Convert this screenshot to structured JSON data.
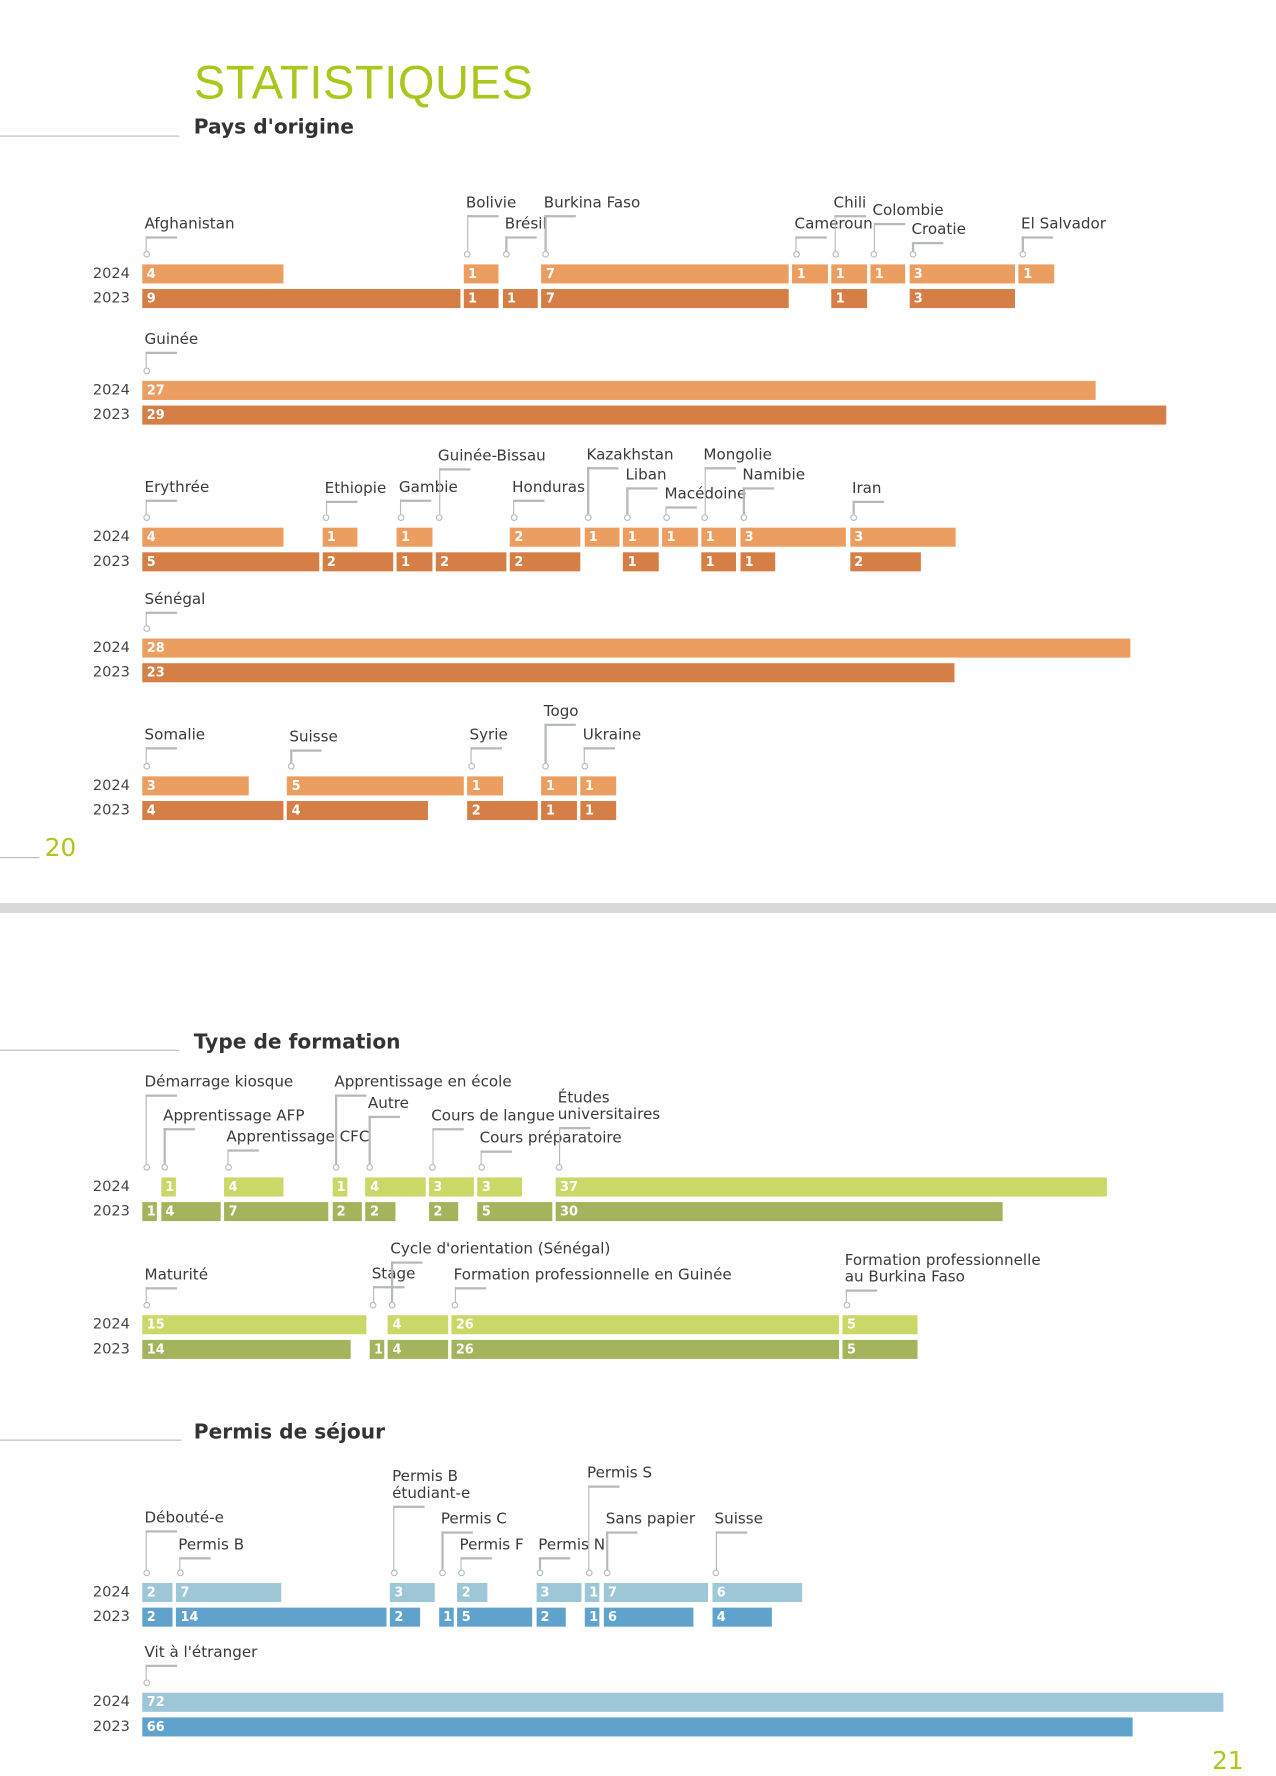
{
  "header": {
    "title": "STATISTIQUES"
  },
  "sections": {
    "pays": "Pays d'origine",
    "formation": "Type de formation",
    "permis": "Permis de séjour"
  },
  "page_numbers": {
    "left": "20",
    "right": "21"
  },
  "chart_data": [
    {
      "type": "bar",
      "orientation": "horizontal-stacked-segments",
      "title": "Pays d'origine",
      "colors": {
        "2024": "#eb9e5f",
        "2023": "#d57f46"
      },
      "groups": [
        {
          "categories": [
            "Afghanistan",
            "Bolivie",
            "Brésil",
            "Burkina Faso",
            "Cameroun",
            "Chili",
            "Colombie",
            "Croatie",
            "El Salvador"
          ],
          "series": [
            {
              "name": "2024",
              "values": [
                4,
                1,
                null,
                7,
                1,
                1,
                1,
                3,
                1
              ]
            },
            {
              "name": "2023",
              "values": [
                9,
                1,
                1,
                7,
                null,
                1,
                null,
                3,
                null
              ]
            }
          ]
        },
        {
          "categories": [
            "Guinée"
          ],
          "series": [
            {
              "name": "2024",
              "values": [
                27
              ]
            },
            {
              "name": "2023",
              "values": [
                29
              ]
            }
          ]
        },
        {
          "categories": [
            "Erythrée",
            "Ethiopie",
            "Gambie",
            "Guinée-Bissau",
            "Honduras",
            "Kazakhstan",
            "Liban",
            "Macédoine",
            "Mongolie",
            "Namibie",
            "Iran"
          ],
          "series": [
            {
              "name": "2024",
              "values": [
                4,
                1,
                1,
                null,
                2,
                1,
                1,
                1,
                1,
                3,
                3
              ]
            },
            {
              "name": "2023",
              "values": [
                5,
                2,
                1,
                2,
                2,
                null,
                1,
                null,
                1,
                1,
                2
              ]
            }
          ]
        },
        {
          "categories": [
            "Sénégal"
          ],
          "series": [
            {
              "name": "2024",
              "values": [
                28
              ]
            },
            {
              "name": "2023",
              "values": [
                23
              ]
            }
          ]
        },
        {
          "categories": [
            "Somalie",
            "Suisse",
            "Syrie",
            "Togo",
            "Ukraine"
          ],
          "series": [
            {
              "name": "2024",
              "values": [
                3,
                5,
                1,
                1,
                1
              ]
            },
            {
              "name": "2023",
              "values": [
                4,
                4,
                2,
                1,
                1
              ]
            }
          ]
        }
      ]
    },
    {
      "type": "bar",
      "orientation": "horizontal-stacked-segments",
      "title": "Type de formation",
      "colors": {
        "2024": "#c9d867",
        "2023": "#a4b45c"
      },
      "groups": [
        {
          "categories": [
            "Démarrage kiosque",
            "Apprentissage AFP",
            "Apprentissage CFC",
            "Apprentissage en école",
            "Autre",
            "Cours de langue",
            "Cours préparatoire",
            "Études\nuniversitaires"
          ],
          "series": [
            {
              "name": "2024",
              "values": [
                null,
                1,
                4,
                1,
                4,
                3,
                3,
                37
              ]
            },
            {
              "name": "2023",
              "values": [
                1,
                4,
                7,
                2,
                2,
                2,
                5,
                30
              ]
            }
          ]
        },
        {
          "categories": [
            "Maturité",
            "Stage",
            "Cycle d'orientation (Sénégal)",
            "Formation professionnelle en Guinée",
            "Formation professionnelle\nau Burkina Faso"
          ],
          "series": [
            {
              "name": "2024",
              "values": [
                15,
                null,
                4,
                26,
                5
              ]
            },
            {
              "name": "2023",
              "values": [
                14,
                1,
                4,
                26,
                5
              ]
            }
          ]
        }
      ]
    },
    {
      "type": "bar",
      "orientation": "horizontal-stacked-segments",
      "title": "Permis de séjour",
      "colors": {
        "2024": "#9dc6d6",
        "2023": "#5fa3cd"
      },
      "groups": [
        {
          "categories": [
            "Débouté-e",
            "Permis B",
            "Permis B\nétudiant-e",
            "Permis C",
            "Permis F",
            "Permis N",
            "Permis S",
            "Sans papier",
            "Suisse"
          ],
          "series": [
            {
              "name": "2024",
              "values": [
                2,
                7,
                3,
                null,
                2,
                3,
                1,
                7,
                6
              ]
            },
            {
              "name": "2023",
              "values": [
                2,
                14,
                2,
                1,
                5,
                2,
                1,
                6,
                4
              ]
            }
          ]
        },
        {
          "categories": [
            "Vit à l'étranger"
          ],
          "series": [
            {
              "name": "2024",
              "values": [
                72
              ]
            },
            {
              "name": "2023",
              "values": [
                66
              ]
            }
          ]
        }
      ]
    }
  ]
}
